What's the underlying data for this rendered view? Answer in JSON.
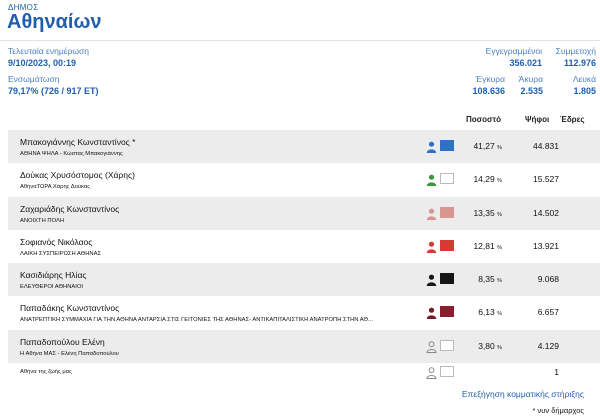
{
  "header": {
    "label": "ΔΗΜΟΣ",
    "title": "Αθηναίων"
  },
  "stats": {
    "last_update_label": "Τελευταία ενημέρωση",
    "last_update_value": "9/10/2023, 00:19",
    "integration_label": "Ενσωμάτωση",
    "integration_value": "79,17% (726 / 917 ΕΤ)",
    "registered_label": "Εγγεγραμμένοι",
    "registered_value": "356.021",
    "participation_label": "Συμμετοχή",
    "participation_value": "112.976",
    "valid_label": "Έγκυρα",
    "valid_value": "108.636",
    "invalid_label": "Άκυρα",
    "invalid_value": "2.535",
    "blank_label": "Λευκά",
    "blank_value": "1.805"
  },
  "columns": {
    "percent": "Ποσοστό",
    "votes": "Ψήφοι",
    "seats": "Έδρες"
  },
  "candidates": [
    {
      "name": "Μπακογιάννης Κωνσταντίνος *",
      "party": "ΑΘΗΝΑ ΨΗΛΑ - Κώστας Μπακογιάννης",
      "percent": "41,27",
      "votes": "44.831",
      "icon_color": "#2d72c4",
      "swatch": "#2d72c4"
    },
    {
      "name": "Δούκας Χρυσόστομος (Χάρης)",
      "party": "ΑθήναΤΩΡΑ Χάρης Δούκας",
      "percent": "14,29",
      "votes": "15.527",
      "icon_color": "#3a9a3a",
      "swatch": "#ffffff"
    },
    {
      "name": "Ζαχαριάδης Κωνσταντίνος",
      "party": "ΑΝΟΙΧΤΗ ΠΟΛΗ",
      "percent": "13,35",
      "votes": "14.502",
      "icon_color": "#d7968f",
      "swatch": "#d7968f"
    },
    {
      "name": "Σοφιανός Νικόλαος",
      "party": "ΛΑΪΚΗ ΣΥΣΠΕΙΡΩΣΗ ΑΘΗΝΑΣ",
      "percent": "12,81",
      "votes": "13.921",
      "icon_color": "#d63a32",
      "swatch": "#d63a32"
    },
    {
      "name": "Κασιδιάρης Ηλίας",
      "party": "ΕΛΕΥΘΕΡΟΙ ΑΘΗΝΑΙΟΙ",
      "percent": "8,35",
      "votes": "9.068",
      "icon_color": "#161616",
      "swatch": "#161616"
    },
    {
      "name": "Παπαδάκης Κωνσταντίνος",
      "party": "ΑΝΑΤΡΕΠΤΙΚΗ ΣΥΜΜΑΧΙΑ ΓΙΑ ΤΗΝ ΑΘΗΝΑ ΑΝΤΑΡΣΙΑ ΣΤΙΣ ΓΕΙΤΟΝΙΕΣ ΤΗΣ ΑΘΗΝΑΣ- ΑΝΤΙΚΑΠΙΤΑΛΙΣΤΙΚΗ ΑΝΑΤΡΟΠΗ ΣΤΗΝ ΑΘ...",
      "percent": "6,13",
      "votes": "6.657",
      "icon_color": "#7a1626",
      "swatch": "#8b1e2e"
    },
    {
      "name": "Παπαδοπούλου Ελένη",
      "party": "Η Αθήνα ΜΑΣ - Ελένη Παπαδοπούλου",
      "percent": "3,80",
      "votes": "4.129",
      "icon_color": "outline",
      "swatch": "#ffffff"
    },
    {
      "name": "",
      "party": "Αθήνα της ζωής μας",
      "percent": "",
      "votes": "1",
      "icon_color": "outline",
      "swatch": "#ffffff"
    }
  ],
  "percent_unit": "%",
  "footer": {
    "link": "Επεξήγηση κομματικής στήριξης",
    "note": "* νυν δήμαρχος"
  }
}
